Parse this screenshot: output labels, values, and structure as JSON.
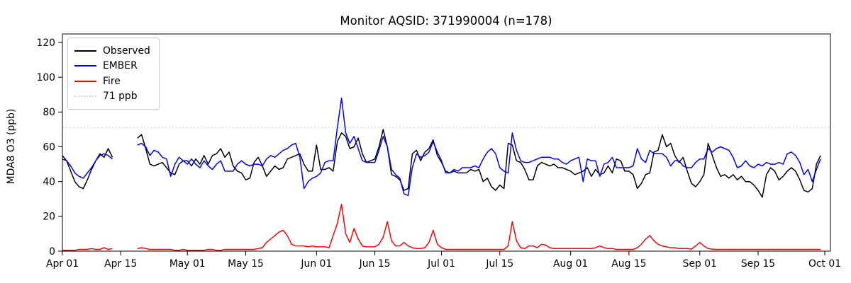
{
  "title": "Monitor AQSID: 371990004 (n=178)",
  "legend": {
    "items": [
      {
        "label": "Observed",
        "color": "#000000",
        "swatch": "solid"
      },
      {
        "label": "EMBER",
        "color": "#0000ff",
        "swatch": "solid"
      },
      {
        "label": "Fire",
        "color": "#ff0000",
        "swatch": "solid"
      },
      {
        "label": "71 ppb",
        "color": "#d3d3d3",
        "swatch": "dotted"
      }
    ]
  },
  "chart_data": {
    "type": "line",
    "title": "Monitor AQSID: 371990004 (n=178)",
    "ylabel": "MDA8 O3 (ppb)",
    "xlabel": "",
    "grid": false,
    "legend_position": "upper left",
    "n_points": 178,
    "ylim": [
      0,
      125
    ],
    "x_start_date": "Apr 01",
    "x_days_total": 183,
    "y_ticks": [
      0,
      20,
      40,
      60,
      80,
      100,
      120
    ],
    "x_ticks": [
      {
        "label": "Apr 01",
        "day": 0
      },
      {
        "label": "Apr 15",
        "day": 14
      },
      {
        "label": "May 01",
        "day": 30
      },
      {
        "label": "May 15",
        "day": 44
      },
      {
        "label": "Jun 01",
        "day": 61
      },
      {
        "label": "Jun 15",
        "day": 75
      },
      {
        "label": "Jul 01",
        "day": 91
      },
      {
        "label": "Jul 15",
        "day": 105
      },
      {
        "label": "Aug 01",
        "day": 122
      },
      {
        "label": "Aug 15",
        "day": 136
      },
      {
        "label": "Sep 01",
        "day": 153
      },
      {
        "label": "Sep 15",
        "day": 167
      },
      {
        "label": "Oct 01",
        "day": 183
      }
    ],
    "reference_line": {
      "value": 71,
      "label": "71 ppb",
      "color": "#d3d3d3",
      "style": "dotted"
    },
    "series": [
      {
        "name": "Observed",
        "color": "#000000",
        "values": [
          55,
          52,
          46,
          40,
          37,
          36,
          41,
          47,
          52,
          56,
          54,
          59,
          54,
          null,
          null,
          null,
          null,
          null,
          65,
          67,
          59,
          50,
          49,
          50,
          51,
          48,
          45,
          44,
          50,
          52,
          52,
          49,
          53,
          50,
          55,
          50,
          55,
          56,
          59,
          54,
          57,
          49,
          46,
          45,
          41,
          42,
          51,
          54,
          49,
          43,
          46,
          49,
          47,
          48,
          53,
          54,
          55,
          56,
          50,
          46,
          46,
          61,
          47,
          47,
          48,
          46,
          63,
          68,
          66,
          59,
          60,
          65,
          56,
          51,
          52,
          53,
          60,
          70,
          60,
          44,
          43,
          41,
          35,
          36,
          56,
          58,
          52,
          57,
          59,
          64,
          55,
          51,
          46,
          45,
          46,
          45,
          45,
          45,
          47,
          46,
          47,
          40,
          42,
          37,
          35,
          38,
          36,
          62,
          61,
          52,
          51,
          47,
          41,
          41,
          49,
          51,
          50,
          49,
          50,
          48,
          48,
          47,
          46,
          44,
          45,
          46,
          48,
          43,
          47,
          44,
          45,
          49,
          45,
          53,
          52,
          46,
          46,
          44,
          36,
          39,
          44,
          45,
          57,
          58,
          67,
          60,
          62,
          55,
          51,
          54,
          46,
          39,
          37,
          40,
          44,
          62,
          55,
          48,
          43,
          44,
          42,
          44,
          41,
          43,
          40,
          40,
          38,
          35,
          31,
          44,
          48,
          46,
          41,
          43,
          46,
          48,
          46,
          41,
          35,
          34,
          36,
          50,
          55
        ]
      },
      {
        "name": "EMBER",
        "color": "#0000ff",
        "values": [
          53,
          52,
          49,
          45,
          43,
          42,
          45,
          48,
          52,
          55,
          56,
          55,
          53,
          null,
          null,
          null,
          null,
          null,
          61,
          62,
          60,
          55,
          58,
          57,
          54,
          53,
          43,
          50,
          54,
          52,
          50,
          53,
          50,
          48,
          52,
          49,
          47,
          50,
          52,
          46,
          46,
          46,
          50,
          52,
          50,
          49,
          50,
          50,
          49,
          53,
          55,
          54,
          56,
          58,
          59,
          61,
          62,
          54,
          36,
          40,
          42,
          43,
          45,
          51,
          52,
          52,
          71,
          88,
          68,
          62,
          66,
          59,
          52,
          51,
          51,
          51,
          58,
          66,
          60,
          47,
          44,
          42,
          33,
          32,
          48,
          56,
          54,
          55,
          57,
          63,
          57,
          52,
          45,
          45,
          47,
          46,
          48,
          48,
          48,
          49,
          48,
          53,
          57,
          59,
          56,
          48,
          46,
          45,
          68,
          58,
          52,
          51,
          51,
          52,
          53,
          54,
          54,
          54,
          53,
          53,
          51,
          50,
          52,
          53,
          54,
          40,
          53,
          52,
          52,
          43,
          50,
          51,
          54,
          48,
          48,
          48,
          48,
          49,
          59,
          53,
          51,
          58,
          56,
          56,
          56,
          54,
          49,
          52,
          52,
          49,
          48,
          48,
          51,
          53,
          53,
          59,
          57,
          59,
          60,
          59,
          58,
          54,
          48,
          49,
          52,
          49,
          48,
          50,
          49,
          51,
          50,
          50,
          51,
          50,
          56,
          57,
          55,
          51,
          44,
          47,
          40,
          47,
          53
        ]
      },
      {
        "name": "Fire",
        "color": "#ff0000",
        "values": [
          0.5,
          0.5,
          0.5,
          0.5,
          1,
          1,
          1,
          1.5,
          1,
          1,
          2,
          1,
          1.5,
          null,
          null,
          null,
          null,
          null,
          1.5,
          2,
          1.5,
          1,
          1,
          1,
          1,
          1,
          1,
          0.5,
          0.5,
          1,
          0.5,
          0.5,
          0.5,
          0.5,
          0.5,
          1,
          1,
          0.5,
          0.5,
          1,
          1,
          1,
          1,
          1,
          1,
          1,
          1,
          1.5,
          2,
          5,
          7,
          9,
          11,
          12,
          9,
          4,
          3,
          3,
          3,
          2.5,
          3,
          2.5,
          2.5,
          2.5,
          2,
          9,
          16,
          27,
          10,
          5,
          13,
          7,
          3,
          2.5,
          2.5,
          2.5,
          4,
          8,
          17,
          6,
          3,
          3,
          5,
          3,
          2,
          1.5,
          1.5,
          2,
          5,
          12,
          4,
          2,
          1,
          1,
          1,
          1,
          1,
          1,
          1,
          1,
          1,
          1,
          1,
          1,
          1,
          1,
          1,
          3,
          17,
          6,
          2,
          1.5,
          3,
          3,
          2,
          4,
          3.5,
          2,
          1.5,
          1.5,
          1.5,
          1.5,
          1.5,
          1.5,
          1.5,
          1.5,
          1.5,
          1.5,
          2,
          3,
          2,
          1.5,
          1.5,
          1,
          1,
          1,
          1,
          1,
          2,
          4,
          7,
          9,
          6,
          4,
          3,
          2.5,
          2,
          2,
          1.5,
          1.5,
          1.5,
          1.2,
          3,
          5,
          3,
          1.5,
          1.2,
          1,
          1,
          1,
          1,
          1,
          1,
          1,
          1,
          1,
          1,
          1,
          1,
          1,
          1,
          1,
          1,
          1,
          1,
          1,
          1,
          1,
          1,
          1,
          1,
          1,
          1
        ]
      }
    ]
  }
}
